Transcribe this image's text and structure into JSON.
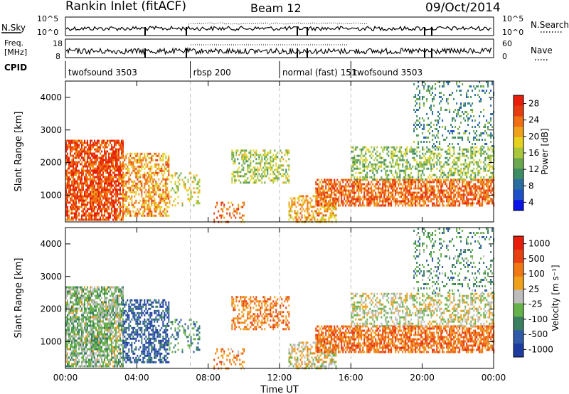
{
  "header": {
    "title": "Rankin Inlet (fitACF)",
    "beam": "Beam 12",
    "date": "09/Oct/2014"
  },
  "panels": {
    "nsky_label": "N.Sky",
    "nsearch_label": "N.Search",
    "nsky_ticks": [
      "10^5",
      "10^0"
    ],
    "nsearch_ticks": [
      "10^5",
      "10^0"
    ],
    "freq_label_line1": "Freq.",
    "freq_label_line2": "[MHz]",
    "freq_ticks": [
      "18",
      "8"
    ],
    "nave_label": "Nave",
    "nave_ticks": [
      "60",
      "0"
    ],
    "cpid_label": "CPID"
  },
  "modes": [
    {
      "label": "twofsound 3503",
      "start_hour": 0
    },
    {
      "label": "rbsp 200",
      "start_hour": 7
    },
    {
      "label": "normal (fast) 151",
      "start_hour": 12
    },
    {
      "label": "twofsound 3503",
      "start_hour": 16
    }
  ],
  "chart_data": [
    {
      "type": "heatmap",
      "quantity": "Power",
      "xlabel": "Time UT",
      "ylabel": "Slant Range [km]",
      "x_ticks": [
        "00:00",
        "04:00",
        "08:00",
        "12:00",
        "16:00",
        "20:00",
        "00:00"
      ],
      "xlim_hours": [
        0,
        24
      ],
      "ylim": [
        180,
        4500
      ],
      "y_ticks": [
        1000,
        2000,
        3000,
        4000
      ],
      "colorbar_label": "Power [dB]",
      "colorbar_ticks": [
        28,
        24,
        20,
        16,
        12,
        8,
        4
      ],
      "colorbar_colors": [
        "#0a14e6",
        "#1e50c8",
        "#2a6ea0",
        "#3c8c64",
        "#6aa84f",
        "#a8c83a",
        "#e6d21e",
        "#f0a01a",
        "#f06e14",
        "#e63c10",
        "#e61e0a"
      ],
      "regions": [
        {
          "t0": 0.0,
          "t1": 3.2,
          "r0": 250,
          "r1": 2700,
          "level": 0.88,
          "density": 0.78
        },
        {
          "t0": 3.2,
          "t1": 5.8,
          "r0": 400,
          "r1": 2300,
          "level": 0.72,
          "density": 0.55
        },
        {
          "t0": 5.8,
          "t1": 7.5,
          "r0": 700,
          "r1": 1700,
          "level": 0.55,
          "density": 0.25
        },
        {
          "t0": 9.3,
          "t1": 12.5,
          "r0": 1400,
          "r1": 2400,
          "level": 0.5,
          "density": 0.45
        },
        {
          "t0": 8.3,
          "t1": 10.0,
          "r0": 180,
          "r1": 800,
          "level": 0.8,
          "density": 0.3
        },
        {
          "t0": 12.5,
          "t1": 15.2,
          "r0": 200,
          "r1": 1000,
          "level": 0.7,
          "density": 0.5
        },
        {
          "t0": 14.0,
          "t1": 24.0,
          "r0": 700,
          "r1": 1500,
          "level": 0.82,
          "density": 0.7
        },
        {
          "t0": 16.0,
          "t1": 24.0,
          "r0": 1500,
          "r1": 2500,
          "level": 0.45,
          "density": 0.45
        },
        {
          "t0": 19.5,
          "t1": 24.0,
          "r0": 2500,
          "r1": 4500,
          "level": 0.3,
          "density": 0.2
        }
      ]
    },
    {
      "type": "heatmap",
      "quantity": "Velocity",
      "xlabel": "Time UT",
      "ylabel": "Slant Range [km]",
      "x_ticks": [
        "00:00",
        "04:00",
        "08:00",
        "12:00",
        "16:00",
        "20:00",
        "00:00"
      ],
      "xlim_hours": [
        0,
        24
      ],
      "ylim": [
        180,
        4500
      ],
      "y_ticks": [
        1000,
        2000,
        3000,
        4000
      ],
      "colorbar_label": "Velocity [m s⁻¹]",
      "colorbar_ticks": [
        1000,
        500,
        100,
        25,
        -25,
        -100,
        -500,
        -1000
      ],
      "colorbar_colors": [
        "#1e3ca0",
        "#2f5aa8",
        "#3a8060",
        "#66b24a",
        "#bdbdbd",
        "#f0a01a",
        "#f07814",
        "#e84010",
        "#e61e0a"
      ],
      "regions": [
        {
          "t0": 0.0,
          "t1": 3.2,
          "r0": 250,
          "r1": 2700,
          "level": 0.42,
          "density": 0.78
        },
        {
          "t0": 3.2,
          "t1": 5.8,
          "r0": 400,
          "r1": 2300,
          "level": 0.1,
          "density": 0.55
        },
        {
          "t0": 5.8,
          "t1": 7.5,
          "r0": 700,
          "r1": 1700,
          "level": 0.25,
          "density": 0.25
        },
        {
          "t0": 9.3,
          "t1": 12.5,
          "r0": 1400,
          "r1": 2400,
          "level": 0.75,
          "density": 0.45
        },
        {
          "t0": 8.3,
          "t1": 10.0,
          "r0": 180,
          "r1": 800,
          "level": 0.7,
          "density": 0.3
        },
        {
          "t0": 12.5,
          "t1": 15.2,
          "r0": 200,
          "r1": 1000,
          "level": 0.55,
          "density": 0.5
        },
        {
          "t0": 14.0,
          "t1": 24.0,
          "r0": 700,
          "r1": 1500,
          "level": 0.78,
          "density": 0.7
        },
        {
          "t0": 16.0,
          "t1": 24.0,
          "r0": 1500,
          "r1": 2500,
          "level": 0.5,
          "density": 0.45
        },
        {
          "t0": 19.5,
          "t1": 24.0,
          "r0": 2500,
          "r1": 4500,
          "level": 0.3,
          "density": 0.2
        }
      ]
    }
  ]
}
